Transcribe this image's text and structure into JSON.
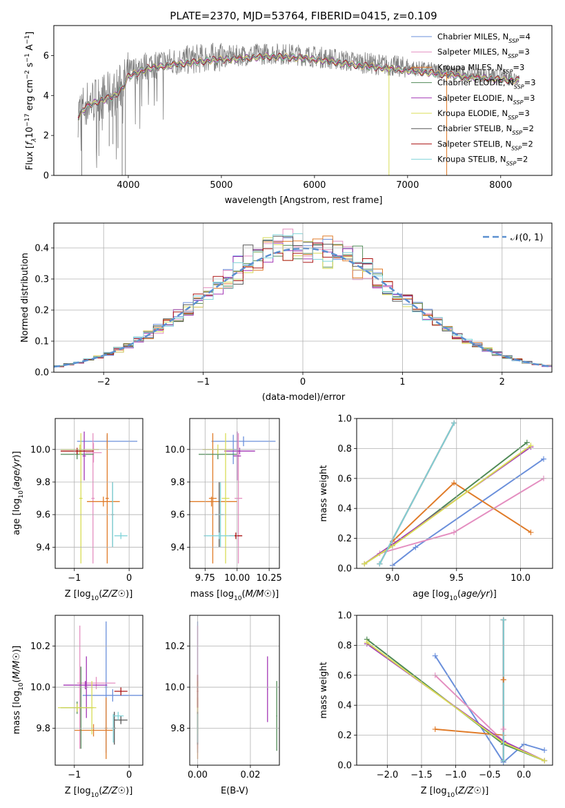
{
  "figure": {
    "title": "PLATE=2370, MJD=53764, FIBERID=0415, z=0.109"
  },
  "colors": {
    "Chabrier MILES": "#6a8fdb",
    "Salpeter MILES": "#e48ec0",
    "Kroupa MILES": "#e07b28",
    "Chabrier ELODIE": "#4f8a56",
    "Salpeter ELODIE": "#a236b5",
    "Kroupa ELODIE": "#d8dc55",
    "Chabrier STELIB": "#555555",
    "Salpeter STELIB": "#aa1111",
    "Kroupa STELIB": "#7fd3d8",
    "data": "#808080",
    "normal": "#5b8fd0",
    "grid": "#b0b0b0"
  },
  "chart_data": [
    {
      "id": "spectrum",
      "type": "line",
      "title": "PLATE=2370, MJD=53764, FIBERID=0415, z=0.109",
      "xlabel": "wavelength [Angstrom, rest frame]",
      "ylabel": "Flux [f_λ 10^-17 erg cm^-2 s^-1 A^-1]",
      "xlim": [
        3200,
        8550
      ],
      "ylim": [
        0,
        7.5
      ],
      "xticks": [
        "4000",
        "5000",
        "6000",
        "7000",
        "8000"
      ],
      "yticks": [
        "0",
        "2",
        "4",
        "6"
      ],
      "legend_position": "upper right",
      "legend": [
        {
          "label": "Chabrier MILES, N",
          "sub": "SSP",
          "tail": "=4"
        },
        {
          "label": "Salpeter MILES, N",
          "sub": "SSP",
          "tail": "=3"
        },
        {
          "label": "Kroupa MILES, N",
          "sub": "SSP",
          "tail": "=3"
        },
        {
          "label": "Chabrier ELODIE, N",
          "sub": "SSP",
          "tail": "=3"
        },
        {
          "label": "Salpeter ELODIE, N",
          "sub": "SSP",
          "tail": "=3"
        },
        {
          "label": "Kroupa ELODIE, N",
          "sub": "SSP",
          "tail": "=3"
        },
        {
          "label": "Chabrier STELIB, N",
          "sub": "SSP",
          "tail": "=2"
        },
        {
          "label": "Salpeter STELIB, N",
          "sub": "SSP",
          "tail": "=2"
        },
        {
          "label": "Kroupa STELIB, N",
          "sub": "SSP",
          "tail": "=2"
        }
      ],
      "continuum": [
        [
          3460,
          3.1
        ],
        [
          3550,
          3.6
        ],
        [
          3700,
          3.9
        ],
        [
          3850,
          4.1
        ],
        [
          3950,
          4.6
        ],
        [
          4000,
          5.1
        ],
        [
          4200,
          5.5
        ],
        [
          4500,
          5.7
        ],
        [
          4860,
          5.9
        ],
        [
          5200,
          6.0
        ],
        [
          5500,
          6.1
        ],
        [
          5800,
          6.05
        ],
        [
          6100,
          5.9
        ],
        [
          6400,
          5.7
        ],
        [
          6800,
          5.5
        ],
        [
          7200,
          5.3
        ],
        [
          7600,
          5.1
        ],
        [
          8000,
          4.95
        ],
        [
          8200,
          4.9
        ]
      ],
      "absorption_dips": [
        [
          3969,
          0.0
        ],
        [
          3934,
          0.0
        ],
        [
          3500,
          0.0
        ],
        [
          6800,
          0.0
        ],
        [
          7420,
          0.0
        ],
        [
          3795,
          1.5
        ],
        [
          3835,
          1.6
        ],
        [
          3889,
          1.4
        ]
      ]
    },
    {
      "id": "residuals",
      "type": "line",
      "xlabel": "(data-model)/error",
      "ylabel": "Normed distribution",
      "xlim": [
        -2.5,
        2.5
      ],
      "ylim": [
        0,
        0.48
      ],
      "xticks": [
        "−2",
        "−1",
        "0",
        "1",
        "2"
      ],
      "yticks": [
        "0.0",
        "0.1",
        "0.2",
        "0.3",
        "0.4"
      ],
      "legend": "𝒩(0, 1)",
      "series": [
        {
          "name": "𝒩(0, 1)",
          "mean": 0,
          "sigma": 1
        }
      ],
      "histogram_bin_width": 0.1
    },
    {
      "id": "z-age",
      "type": "errorbar",
      "xlabel": "Z [log10(Z/Z☉)]",
      "ylabel": "age [log10(age/yr)]",
      "xlim": [
        -1.35,
        0.25
      ],
      "ylim": [
        9.27,
        10.19
      ],
      "xticks": [
        "−1",
        "0"
      ],
      "yticks": [
        "9.4",
        "9.6",
        "9.8",
        "10.0"
      ],
      "points": [
        {
          "m": "Chabrier MILES",
          "x": -0.4,
          "xe": 0.55,
          "y": 10.05,
          "ye": 0.04
        },
        {
          "m": "Salpeter MILES",
          "x": -0.65,
          "xe": 0.15,
          "y": 9.98,
          "ye": 0.06
        },
        {
          "m": "Salpeter MILES",
          "x": -0.66,
          "xe": 0.03,
          "y": 9.7,
          "ye": 0.4
        },
        {
          "m": "Kroupa MILES",
          "x": -0.47,
          "xe": 0.3,
          "y": 9.68,
          "ye": 0.03
        },
        {
          "m": "Kroupa MILES",
          "x": -0.4,
          "xe": 0.03,
          "y": 9.7,
          "ye": 0.4
        },
        {
          "m": "Chabrier ELODIE",
          "x": -0.95,
          "xe": 0.3,
          "y": 9.97,
          "ye": 0.03
        },
        {
          "m": "Salpeter ELODIE",
          "x": -0.82,
          "xe": 0.03,
          "y": 9.96,
          "ye": 0.15
        },
        {
          "m": "Kroupa ELODIE",
          "x": -0.9,
          "xe": 0.35,
          "y": 10.0,
          "ye": 0.03
        },
        {
          "m": "Kroupa ELODIE",
          "x": -0.88,
          "xe": 0.03,
          "y": 9.7,
          "ye": 0.4
        },
        {
          "m": "Chabrier STELIB",
          "x": -0.3,
          "xe": 0.02,
          "y": 9.6,
          "ye": 0.2
        },
        {
          "m": "Salpeter STELIB",
          "x": -0.95,
          "xe": 0.3,
          "y": 9.99,
          "ye": 0.02
        },
        {
          "m": "Kroupa STELIB",
          "x": -0.15,
          "xe": 0.12,
          "y": 9.47,
          "ye": 0.02
        },
        {
          "m": "Kroupa STELIB",
          "x": -0.3,
          "xe": 0.03,
          "y": 9.6,
          "ye": 0.2
        }
      ]
    },
    {
      "id": "mass-age",
      "type": "errorbar",
      "xlabel": "mass [log10(M/M☉)]",
      "xlim": [
        9.63,
        10.33
      ],
      "ylim": [
        9.27,
        10.19
      ],
      "xticks": [
        "9.75",
        "10.00",
        "10.25"
      ],
      "yticks": [
        "9.4",
        "9.6",
        "9.8",
        "10.0"
      ],
      "points": [
        {
          "m": "Chabrier MILES",
          "x": 10.05,
          "xe": 0.25,
          "y": 10.05,
          "ye": 0.03
        },
        {
          "m": "Chabrier MILES",
          "x": 9.97,
          "xe": 0.03,
          "y": 10.0,
          "ye": 0.09
        },
        {
          "m": "Salpeter MILES",
          "x": 10.01,
          "xe": 0.03,
          "y": 9.7,
          "ye": 0.4
        },
        {
          "m": "Kroupa MILES",
          "x": 9.8,
          "xe": 0.2,
          "y": 9.68,
          "ye": 0.03
        },
        {
          "m": "Kroupa MILES",
          "x": 9.81,
          "xe": 0.03,
          "y": 9.7,
          "ye": 0.4
        },
        {
          "m": "Chabrier ELODIE",
          "x": 9.85,
          "xe": 0.15,
          "y": 9.97,
          "ye": 0.03
        },
        {
          "m": "Salpeter ELODIE",
          "x": 10.0,
          "xe": 0.03,
          "y": 9.96,
          "ye": 0.15
        },
        {
          "m": "Salpeter ELODIE",
          "x": 10.02,
          "xe": 0.12,
          "y": 9.99,
          "ye": 0.02
        },
        {
          "m": "Kroupa ELODIE",
          "x": 9.85,
          "xe": 0.12,
          "y": 10.0,
          "ye": 0.03
        },
        {
          "m": "Kroupa ELODIE",
          "x": 9.91,
          "xe": 0.03,
          "y": 9.7,
          "ye": 0.4
        },
        {
          "m": "Chabrier STELIB",
          "x": 9.86,
          "xe": 0.03,
          "y": 9.6,
          "ye": 0.2
        },
        {
          "m": "Salpeter STELIB",
          "x": 9.99,
          "xe": 0.05,
          "y": 9.47,
          "ye": 0.02
        },
        {
          "m": "Kroupa STELIB",
          "x": 9.86,
          "xe": 0.12,
          "y": 9.47,
          "ye": 0.02
        },
        {
          "m": "Kroupa STELIB",
          "x": 9.87,
          "xe": 0.03,
          "y": 9.6,
          "ye": 0.2
        }
      ]
    },
    {
      "id": "age-weight",
      "type": "line",
      "xlabel": "age [log10(age/yr)]",
      "ylabel": "mass weight",
      "xlim": [
        8.72,
        10.25
      ],
      "ylim": [
        0,
        1.0
      ],
      "xticks": [
        "9.0",
        "9.5",
        "10.0"
      ],
      "yticks": [
        "0.0",
        "0.2",
        "0.4",
        "0.6",
        "0.8",
        "1.0"
      ],
      "series": [
        {
          "m": "Chabrier MILES",
          "points": [
            [
              9.0,
              0.02
            ],
            [
              9.18,
              0.14
            ],
            [
              10.18,
              0.73
            ]
          ]
        },
        {
          "m": "Salpeter MILES",
          "points": [
            [
              8.9,
              0.1
            ],
            [
              9.48,
              0.24
            ],
            [
              10.18,
              0.6
            ]
          ]
        },
        {
          "m": "Kroupa MILES",
          "points": [
            [
              9.0,
              0.18
            ],
            [
              9.48,
              0.57
            ],
            [
              10.08,
              0.24
            ]
          ]
        },
        {
          "m": "Chabrier ELODIE",
          "points": [
            [
              8.78,
              0.03
            ],
            [
              9.0,
              0.15
            ],
            [
              10.05,
              0.84
            ]
          ]
        },
        {
          "m": "Salpeter ELODIE",
          "points": [
            [
              8.78,
              0.03
            ],
            [
              9.0,
              0.16
            ],
            [
              10.08,
              0.81
            ]
          ]
        },
        {
          "m": "Kroupa ELODIE",
          "points": [
            [
              8.78,
              0.03
            ],
            [
              9.0,
              0.15
            ],
            [
              10.08,
              0.82
            ]
          ]
        },
        {
          "m": "Chabrier STELIB",
          "points": [
            [
              8.9,
              0.03
            ],
            [
              9.48,
              0.97
            ]
          ]
        },
        {
          "m": "Salpeter STELIB",
          "points": [
            [
              8.9,
              0.03
            ],
            [
              9.48,
              0.97
            ]
          ]
        },
        {
          "m": "Kroupa STELIB",
          "points": [
            [
              8.9,
              0.03
            ],
            [
              9.48,
              0.97
            ]
          ]
        }
      ]
    },
    {
      "id": "z-mass",
      "type": "errorbar",
      "xlabel": "Z [log10(Z/Z☉)]",
      "ylabel": "mass [log10(M/M☉)]",
      "xlim": [
        -1.35,
        0.25
      ],
      "ylim": [
        9.62,
        10.35
      ],
      "xticks": [
        "−1",
        "0"
      ],
      "yticks": [
        "9.8",
        "10.0",
        "10.2"
      ],
      "points": [
        {
          "m": "Chabrier MILES",
          "x": -0.3,
          "xe": 0.55,
          "y": 9.96,
          "ye": 0.03
        },
        {
          "m": "Chabrier MILES",
          "x": -0.42,
          "xe": 0.03,
          "y": 10.0,
          "ye": 0.32
        },
        {
          "m": "Salpeter MILES",
          "x": -0.6,
          "xe": 0.35,
          "y": 10.02,
          "ye": 0.03
        },
        {
          "m": "Salpeter MILES",
          "x": -0.9,
          "xe": 0.03,
          "y": 10.0,
          "ye": 0.3
        },
        {
          "m": "Kroupa MILES",
          "x": -0.65,
          "xe": 0.35,
          "y": 9.79,
          "ye": 0.03
        },
        {
          "m": "Kroupa MILES",
          "x": -0.42,
          "xe": 0.03,
          "y": 9.8,
          "ye": 0.15
        },
        {
          "m": "Chabrier ELODIE",
          "x": -0.95,
          "xe": 0.3,
          "y": 9.9,
          "ye": 0.03
        },
        {
          "m": "Chabrier ELODIE",
          "x": -0.88,
          "xe": 0.03,
          "y": 9.9,
          "ye": 0.2
        },
        {
          "m": "Salpeter ELODIE",
          "x": -0.8,
          "xe": 0.4,
          "y": 10.01,
          "ye": 0.02
        },
        {
          "m": "Salpeter ELODIE",
          "x": -0.78,
          "xe": 0.03,
          "y": 10.0,
          "ye": 0.15
        },
        {
          "m": "Kroupa ELODIE",
          "x": -0.95,
          "xe": 0.35,
          "y": 9.9,
          "ye": 0.02
        },
        {
          "m": "Kroupa ELODIE",
          "x": -0.68,
          "xe": 0.03,
          "y": 9.9,
          "ye": 0.13
        },
        {
          "m": "Chabrier STELIB",
          "x": -0.15,
          "xe": 0.12,
          "y": 9.84,
          "ye": 0.02
        },
        {
          "m": "Chabrier STELIB",
          "x": -0.27,
          "xe": 0.03,
          "y": 9.8,
          "ye": 0.08
        },
        {
          "m": "Salpeter STELIB",
          "x": -0.15,
          "xe": 0.12,
          "y": 9.98,
          "ye": 0.02
        },
        {
          "m": "Kroupa STELIB",
          "x": -0.2,
          "xe": 0.1,
          "y": 9.86,
          "ye": 0.02
        },
        {
          "m": "Kroupa STELIB",
          "x": -0.29,
          "xe": 0.03,
          "y": 9.8,
          "ye": 0.07
        }
      ]
    },
    {
      "id": "ebv-mass",
      "type": "errorbar",
      "xlabel": "E(B-V)",
      "xlim": [
        -0.003,
        0.031
      ],
      "ylim": [
        9.62,
        10.35
      ],
      "xticks": [
        "0.00",
        "0.02"
      ],
      "yticks": [
        "9.8",
        "10.0",
        "10.2"
      ],
      "points": [
        {
          "m": "Chabrier MILES",
          "x": 0.0,
          "xe": 0.0002,
          "y": 10.0,
          "ye": 0.32
        },
        {
          "m": "Salpeter MILES",
          "x": 0.0,
          "xe": 0.0002,
          "y": 10.0,
          "ye": 0.3
        },
        {
          "m": "Kroupa MILES",
          "x": 0.0,
          "xe": 0.0002,
          "y": 9.8,
          "ye": 0.15
        },
        {
          "m": "Chabrier ELODIE",
          "x": 0.03,
          "xe": 0.0002,
          "y": 9.86,
          "ye": 0.17
        },
        {
          "m": "Salpeter ELODIE",
          "x": 0.0265,
          "xe": 0.0002,
          "y": 9.99,
          "ye": 0.16
        },
        {
          "m": "Kroupa ELODIE",
          "x": 0.0,
          "xe": 0.0002,
          "y": 9.9,
          "ye": 0.13
        },
        {
          "m": "Chabrier STELIB",
          "x": 0.0,
          "xe": 0.0002,
          "y": 9.8,
          "ye": 0.08
        },
        {
          "m": "Salpeter STELIB",
          "x": 0.0,
          "xe": 0.0002,
          "y": 9.98,
          "ye": 0.08
        },
        {
          "m": "Kroupa STELIB",
          "x": 0.0,
          "xe": 0.0002,
          "y": 9.8,
          "ye": 0.07
        }
      ]
    },
    {
      "id": "z-weight",
      "type": "line",
      "xlabel": "Z [log10(Z/Z☉)]",
      "ylabel": "mass weight",
      "xlim": [
        -2.45,
        0.42
      ],
      "ylim": [
        0,
        1.0
      ],
      "xticks": [
        "−2.0",
        "−1.5",
        "−1.0",
        "−0.5",
        "0.0"
      ],
      "yticks": [
        "0.0",
        "0.2",
        "0.4",
        "0.6",
        "0.8",
        "1.0"
      ],
      "series": [
        {
          "m": "Chabrier MILES",
          "points": [
            [
              -1.3,
              0.73
            ],
            [
              -0.3,
              0.02
            ],
            [
              0.0,
              0.14
            ],
            [
              0.3,
              0.1
            ]
          ]
        },
        {
          "m": "Salpeter MILES",
          "points": [
            [
              -1.3,
              0.6
            ],
            [
              -0.3,
              0.16
            ]
          ]
        },
        {
          "m": "Kroupa MILES",
          "points": [
            [
              -1.3,
              0.24
            ],
            [
              -0.3,
              0.2
            ]
          ]
        },
        {
          "m": "Chabrier ELODIE",
          "points": [
            [
              -2.3,
              0.84
            ],
            [
              -0.3,
              0.14
            ],
            [
              0.3,
              0.03
            ]
          ]
        },
        {
          "m": "Salpeter ELODIE",
          "points": [
            [
              -2.3,
              0.81
            ],
            [
              -0.3,
              0.16
            ],
            [
              0.3,
              0.03
            ]
          ]
        },
        {
          "m": "Kroupa ELODIE",
          "points": [
            [
              -2.3,
              0.82
            ],
            [
              -0.3,
              0.15
            ],
            [
              0.3,
              0.03
            ]
          ]
        },
        {
          "m": "Chabrier STELIB",
          "points": [
            [
              -0.3,
              0.97
            ],
            [
              -0.3,
              0.03
            ]
          ]
        },
        {
          "m": "Salpeter STELIB",
          "points": [
            [
              -0.3,
              0.97
            ],
            [
              -0.3,
              0.03
            ]
          ]
        },
        {
          "m": "Kroupa STELIB",
          "points": [
            [
              -0.3,
              0.97
            ],
            [
              -0.3,
              0.03
            ]
          ]
        },
        {
          "m": "Kroupa MILES",
          "points": [
            [
              -0.3,
              0.57
            ],
            [
              -0.3,
              0.57
            ]
          ]
        },
        {
          "m": "Salpeter MILES",
          "points": [
            [
              -0.3,
              0.24
            ],
            [
              -0.3,
              0.24
            ]
          ]
        }
      ]
    }
  ]
}
